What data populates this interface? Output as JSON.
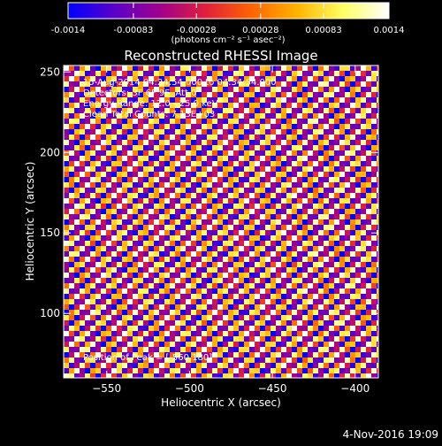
{
  "colorbar": {
    "ticks": [
      "-0.0014",
      "-0.00083",
      "-0.00028",
      "0.00028",
      "0.00083",
      "0.0014"
    ],
    "tick_values": [
      -0.0014,
      -0.00083,
      -0.00028,
      0.00028,
      0.00083,
      0.0014
    ],
    "unit_label": "(photons cm⁻² s⁻¹ asec⁻²)",
    "colormap": [
      "#0000ff",
      "#5a00c8",
      "#a0008c",
      "#e0203c",
      "#ff6400",
      "#ffb400",
      "#ffff64",
      "#ffffff"
    ]
  },
  "title": "Reconstructed RHESSI Image",
  "info_lines": [
    "15-Aug-2014 04:24:54.000 to 04:34:54.000",
    "Detectors: 3F 6F 9F, Att 0",
    "Energy Range: 12.0 - 25.0 keV",
    "Clean    Total Counts: 7.13E+03"
  ],
  "peak_label": "Position of Peak = [-560,180]",
  "timestamp": "4-Nov-2016 19:09",
  "chart_data": {
    "type": "heatmap",
    "title": "Reconstructed RHESSI Image",
    "xlabel": "Heliocentric X (arcsec)",
    "ylabel": "Heliocentric Y (arcsec)",
    "xlim": [
      -576,
      -386
    ],
    "ylim": [
      60,
      254
    ],
    "x_ticks": [
      -550,
      -500,
      -450,
      -400
    ],
    "y_ticks": [
      100,
      150,
      200,
      250
    ],
    "x_tick_labels": [
      "−550",
      "−500",
      "−450",
      "−400"
    ],
    "y_tick_labels": [
      "100",
      "150",
      "200",
      "250"
    ],
    "value_range": [
      -0.0014,
      0.0014
    ],
    "grid": false,
    "peak_position": [
      -560,
      180
    ]
  }
}
